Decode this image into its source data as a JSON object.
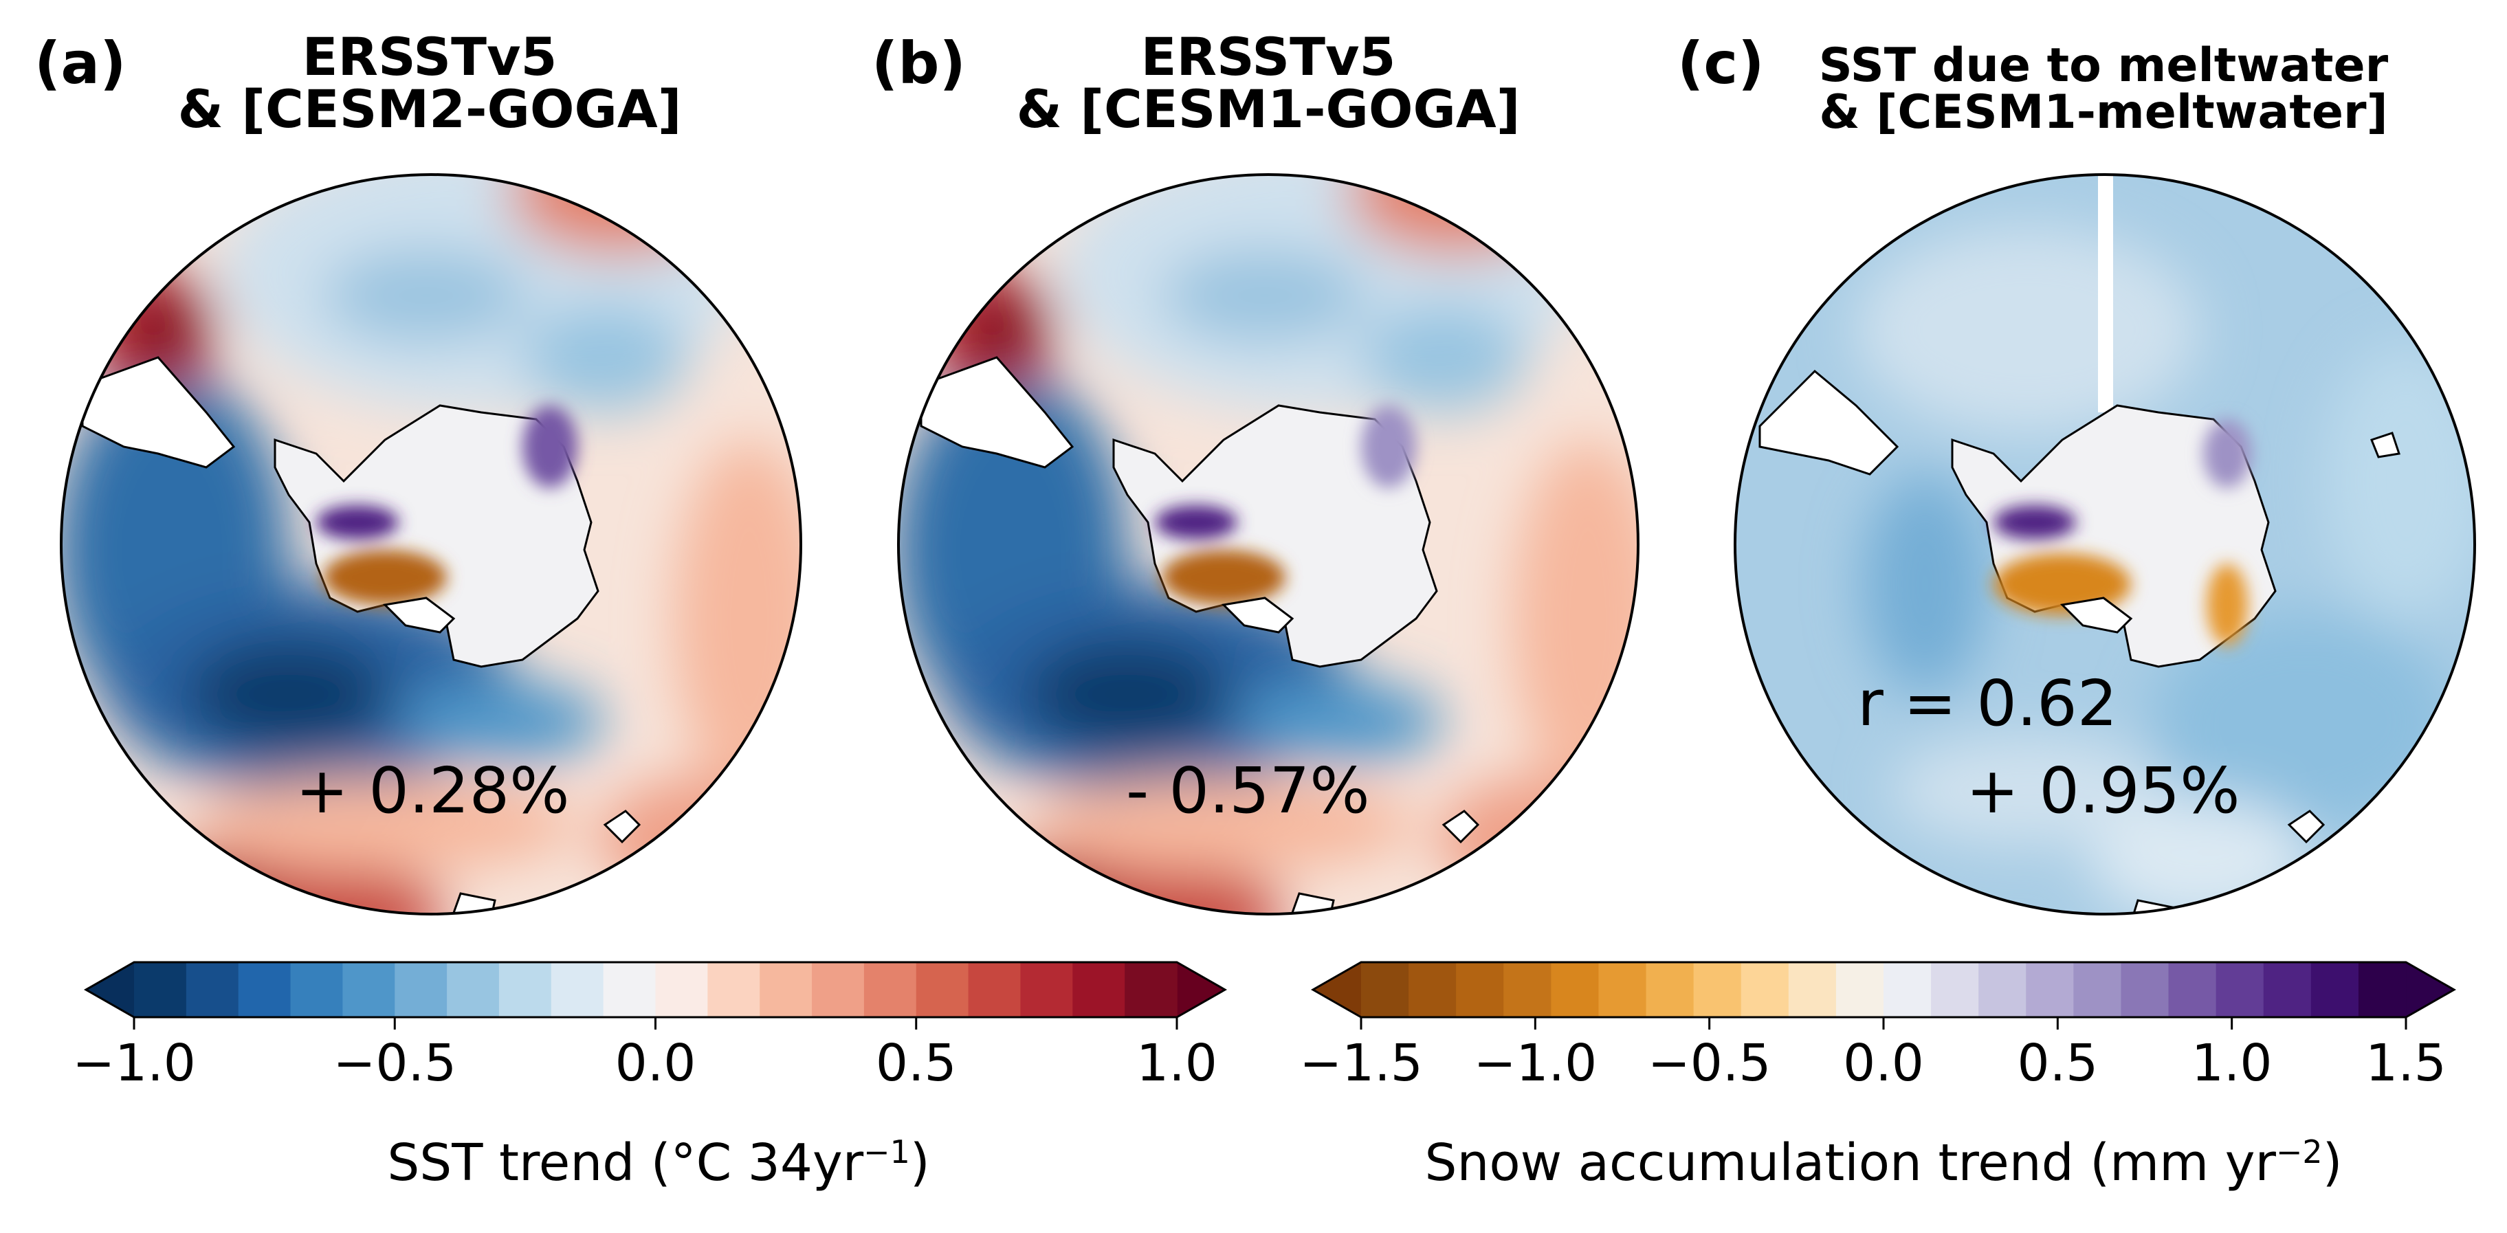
{
  "panels": [
    {
      "label": "(a)",
      "title_line1": "ERSSTv5",
      "title_line2": "& [CESM2-GOGA]",
      "stat_pct": "+ 0.28%",
      "stat_r": ""
    },
    {
      "label": "(b)",
      "title_line1": "ERSSTv5",
      "title_line2": "& [CESM1-GOGA]",
      "stat_pct": "- 0.57%",
      "stat_r": ""
    },
    {
      "label": "(c)",
      "title_line1": "SST due to meltwater",
      "title_line2": "&  [CESM1-meltwater]",
      "stat_pct": "+ 0.95%",
      "stat_r": "r = 0.62"
    }
  ],
  "colorbars": [
    {
      "title_main": "SST trend (°C 34yr",
      "title_sup": "−1",
      "title_end": ")",
      "range": [
        -1.0,
        1.0
      ],
      "ticks": [
        "−1.0",
        "−0.5",
        "0.0",
        "0.5",
        "1.0"
      ],
      "tick_values": [
        -1.0,
        -0.5,
        0.0,
        0.5,
        1.0
      ],
      "extend": "both",
      "colors": [
        "#0b3a6b",
        "#174f8c",
        "#2166ac",
        "#3680bc",
        "#4f96c9",
        "#74aed6",
        "#98c5e1",
        "#bcdaec",
        "#dbe9f3",
        "#f2f2f4",
        "#faebe6",
        "#fbd3c0",
        "#f6b89e",
        "#efa088",
        "#e4826b",
        "#d6644f",
        "#c7473f",
        "#b42a33",
        "#9c1428",
        "#7a0b22"
      ],
      "extend_low": "#082f5c",
      "extend_high": "#67001f"
    },
    {
      "title_main": "Snow accumulation trend (mm yr",
      "title_sup": "−2",
      "title_end": ")",
      "range": [
        -1.5,
        1.5
      ],
      "ticks": [
        "−1.5",
        "−1.0",
        "−0.5",
        "0.0",
        "0.5",
        "1.0",
        "1.5"
      ],
      "tick_values": [
        -1.5,
        -1.0,
        -0.5,
        0.0,
        0.5,
        1.0,
        1.5
      ],
      "extend": "both",
      "colors": [
        "#8c4a0d",
        "#a0560f",
        "#b36412",
        "#c47419",
        "#d8861e",
        "#e69a32",
        "#f1b04f",
        "#f9c370",
        "#fdd597",
        "#fbe4c0",
        "#f6f0e6",
        "#eceef4",
        "#dcdbeb",
        "#c7c4e0",
        "#b3aad3",
        "#9e92c5",
        "#8a77b6",
        "#7659a6",
        "#623d96",
        "#4f2383",
        "#3d0f6e",
        "#2d004b"
      ],
      "extend_low": "#7f3b08",
      "extend_high": "#2d004b"
    }
  ],
  "chart_data": [
    {
      "type": "heatmap",
      "title": "ERSSTv5 & [CESM2-GOGA]",
      "projection": "south polar stereographic",
      "variables": [
        "SST trend (°C 34yr−1) over ocean",
        "Snow accumulation trend (mm yr−2) over Antarctica"
      ],
      "annotation": "+ 0.28%"
    },
    {
      "type": "heatmap",
      "title": "ERSSTv5 & [CESM1-GOGA]",
      "projection": "south polar stereographic",
      "variables": [
        "SST trend (°C 34yr−1) over ocean",
        "Snow accumulation trend (mm yr−2) over Antarctica"
      ],
      "annotation": "- 0.57%"
    },
    {
      "type": "heatmap",
      "title": "SST due to meltwater & [CESM1-meltwater]",
      "projection": "south polar stereographic",
      "variables": [
        "SST trend (°C 34yr−1) over ocean",
        "Snow accumulation trend (mm yr−2) over Antarctica"
      ],
      "annotations": [
        "r = 0.62",
        "+ 0.95%"
      ]
    }
  ]
}
